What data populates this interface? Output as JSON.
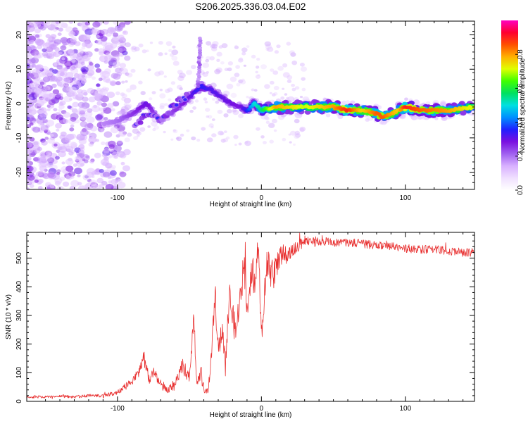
{
  "title": "S206.2025.336.03.04.E02",
  "chart_data": [
    {
      "type": "heatmap",
      "name": "spectrogram",
      "xlabel": "Height of straight line (km)",
      "ylabel": "Frequency (Hz)",
      "xlim": [
        -163,
        148
      ],
      "ylim": [
        -25,
        24
      ],
      "xticks": [
        -100,
        0,
        100
      ],
      "xtick_labels": [
        "-100",
        "0",
        "100"
      ],
      "yticks": [
        -20,
        -10,
        0,
        10,
        20
      ],
      "ytick_labels": [
        "-20",
        "-10",
        "0",
        "10",
        "20"
      ],
      "ridge": {
        "x": [
          -110,
          -100,
          -90,
          -80,
          -70,
          -60,
          -50,
          -42,
          -35,
          -25,
          -15,
          -10,
          -5,
          0,
          10,
          30,
          50,
          60,
          70,
          80,
          85,
          90,
          95,
          100,
          110,
          130,
          148
        ],
        "y": [
          -6,
          -5,
          -3,
          0,
          -5,
          -2,
          2,
          5,
          4,
          1,
          -1,
          -2,
          0,
          -2,
          -1,
          -1,
          -1,
          -2,
          -2,
          -3,
          -4,
          -3,
          -2,
          -1,
          -2,
          -2,
          -1
        ],
        "level": [
          0.18,
          0.2,
          0.25,
          0.3,
          0.2,
          0.25,
          0.3,
          0.35,
          0.32,
          0.3,
          0.28,
          0.35,
          0.5,
          0.55,
          0.8,
          0.7,
          0.8,
          0.9,
          0.75,
          0.85,
          0.85,
          0.8,
          0.75,
          0.9,
          0.85,
          0.8,
          0.7
        ]
      },
      "secondary_ridge": {
        "x": [
          -88,
          -80,
          -70,
          -60,
          -52
        ],
        "y": [
          -7,
          -3,
          -5,
          0,
          2
        ]
      },
      "colorbar": {
        "label": "Normalized spectral amplitude",
        "ticks": [
          0.0,
          0.2,
          0.4,
          0.6,
          0.8
        ],
        "tick_labels": [
          "0.0",
          "0.2",
          "0.4",
          "0.6",
          "0.8"
        ],
        "range": [
          0,
          1
        ],
        "colormap": [
          "#ffffff",
          "#f0e0ff",
          "#d8b0ff",
          "#a060f0",
          "#7a10e0",
          "#2020ff",
          "#0090ff",
          "#00e0e0",
          "#00e060",
          "#40ff00",
          "#e0ff00",
          "#ffb000",
          "#ff5000",
          "#ff0030",
          "#ff00c0"
        ]
      }
    },
    {
      "type": "line",
      "name": "snr",
      "xlabel": "Height of straight line (km)",
      "ylabel": "SNR (10 * v/v)",
      "xlim": [
        -163,
        148
      ],
      "ylim": [
        0,
        590
      ],
      "xticks": [
        -100,
        0,
        100
      ],
      "xtick_labels": [
        "-100",
        "0",
        "100"
      ],
      "yticks": [
        0,
        100,
        200,
        300,
        400,
        500
      ],
      "ytick_labels": [
        "0",
        "100",
        "200",
        "300",
        "400",
        "500"
      ],
      "color": "#e83030",
      "series": [
        {
          "name": "SNR",
          "x": [
            -163,
            -150,
            -140,
            -130,
            -120,
            -110,
            -100,
            -95,
            -90,
            -85,
            -82,
            -80,
            -78,
            -75,
            -70,
            -65,
            -60,
            -55,
            -50,
            -47,
            -45,
            -42,
            -40,
            -37,
            -35,
            -32,
            -30,
            -27,
            -25,
            -22,
            -20,
            -17,
            -15,
            -12,
            -10,
            -7,
            -5,
            -2,
            0,
            3,
            5,
            8,
            10,
            13,
            15,
            18,
            20,
            25,
            30,
            40,
            50,
            60,
            70,
            80,
            90,
            100,
            110,
            120,
            130,
            140,
            148
          ],
          "y": [
            15,
            15,
            18,
            15,
            20,
            20,
            30,
            50,
            70,
            100,
            160,
            120,
            80,
            100,
            60,
            40,
            60,
            130,
            80,
            300,
            60,
            100,
            40,
            30,
            150,
            380,
            200,
            250,
            120,
            400,
            300,
            250,
            350,
            500,
            300,
            480,
            420,
            550,
            200,
            450,
            480,
            430,
            470,
            500,
            520,
            510,
            520,
            540,
            560,
            560,
            555,
            555,
            550,
            545,
            540,
            535,
            530,
            530,
            525,
            520,
            520
          ],
          "noise": [
            4,
            4,
            4,
            5,
            5,
            6,
            8,
            12,
            15,
            20,
            25,
            25,
            20,
            20,
            18,
            15,
            20,
            30,
            25,
            40,
            20,
            30,
            15,
            12,
            40,
            60,
            50,
            50,
            40,
            60,
            50,
            50,
            60,
            70,
            60,
            70,
            60,
            50,
            50,
            60,
            60,
            55,
            50,
            45,
            40,
            30,
            25,
            20,
            18,
            16,
            15,
            15,
            15,
            15,
            15,
            15,
            15,
            15,
            15,
            15,
            15
          ]
        }
      ]
    }
  ]
}
